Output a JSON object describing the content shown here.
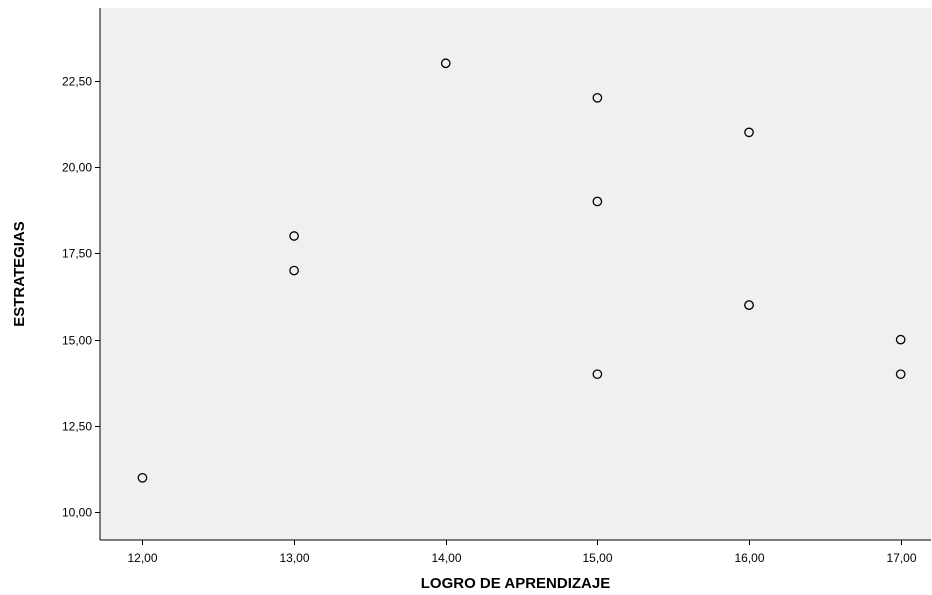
{
  "chart_data": {
    "type": "scatter",
    "title": "",
    "xlabel": "LOGRO DE APRENDIZAJE",
    "ylabel": "ESTRATEGIAS",
    "xlim": [
      11.72,
      17.2
    ],
    "ylim": [
      9.2,
      24.6
    ],
    "x_ticks": [
      12,
      13,
      14,
      15,
      16,
      17
    ],
    "x_tick_labels": [
      "12,00",
      "13,00",
      "14,00",
      "15,00",
      "16,00",
      "17,00"
    ],
    "y_ticks": [
      10,
      12.5,
      15,
      17.5,
      20,
      22.5
    ],
    "y_tick_labels": [
      "10,00",
      "12,50",
      "15,00",
      "17,50",
      "20,00",
      "22,50"
    ],
    "grid": false,
    "legend": "none",
    "colors": {
      "plot_background": "#f0f0f0",
      "marker_stroke": "#000000",
      "marker_fill": "#f0f0f0",
      "axis": "#000000"
    },
    "marker": "hollow-circle",
    "points": [
      {
        "x": 12,
        "y": 11
      },
      {
        "x": 13,
        "y": 17
      },
      {
        "x": 13,
        "y": 18
      },
      {
        "x": 14,
        "y": 23
      },
      {
        "x": 15,
        "y": 22
      },
      {
        "x": 15,
        "y": 19
      },
      {
        "x": 15,
        "y": 14
      },
      {
        "x": 16,
        "y": 21
      },
      {
        "x": 16,
        "y": 16
      },
      {
        "x": 16,
        "y": 16
      },
      {
        "x": 17,
        "y": 15
      },
      {
        "x": 17,
        "y": 14
      }
    ]
  }
}
